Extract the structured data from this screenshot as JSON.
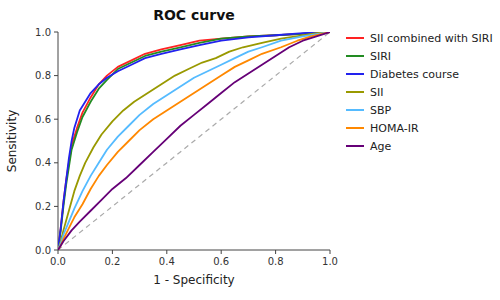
{
  "chart_data": {
    "type": "line",
    "title": "ROC curve",
    "x_label": "1 - Specificity",
    "y_label": "Sensitivity",
    "xlim": [
      0.0,
      1.0
    ],
    "ylim": [
      0.0,
      1.0
    ],
    "xticks": [
      {
        "value": 0.0,
        "label": "0.0"
      },
      0.2,
      0.4,
      0.6,
      0.8,
      {
        "value": 1.0,
        "label": "1.0"
      }
    ],
    "yticks": [
      {
        "value": 0.0,
        "label": "0.0"
      },
      0.2,
      0.4,
      0.6,
      0.8,
      {
        "value": 1.0,
        "label": "1.0"
      }
    ],
    "grid": false,
    "legend": "right",
    "series": [
      {
        "color": "#AAAAAA",
        "line_style": "dashed",
        "x": [
          0,
          1
        ],
        "values": [
          0,
          1
        ]
      },
      {
        "name": "SII combined with SIRI",
        "color": "#FF2222",
        "x": [
          0,
          0.01,
          0.02,
          0.03,
          0.04,
          0.05,
          0.07,
          0.09,
          0.12,
          0.15,
          0.18,
          0.22,
          0.27,
          0.32,
          0.38,
          0.45,
          0.52,
          0.6,
          0.7,
          0.8,
          0.88,
          0.93,
          1.0
        ],
        "values": [
          0,
          0.1,
          0.22,
          0.32,
          0.4,
          0.48,
          0.56,
          0.63,
          0.7,
          0.76,
          0.8,
          0.84,
          0.87,
          0.9,
          0.92,
          0.94,
          0.96,
          0.97,
          0.98,
          0.985,
          0.99,
          0.995,
          1.0
        ]
      },
      {
        "name": "SIRI",
        "color": "#228B22",
        "x": [
          0,
          0.01,
          0.02,
          0.03,
          0.04,
          0.05,
          0.07,
          0.09,
          0.12,
          0.15,
          0.18,
          0.22,
          0.27,
          0.32,
          0.38,
          0.45,
          0.52,
          0.6,
          0.7,
          0.8,
          0.88,
          0.93,
          1.0
        ],
        "values": [
          0,
          0.09,
          0.2,
          0.3,
          0.38,
          0.46,
          0.54,
          0.61,
          0.68,
          0.74,
          0.78,
          0.83,
          0.86,
          0.89,
          0.91,
          0.93,
          0.95,
          0.97,
          0.98,
          0.985,
          0.99,
          0.995,
          1.0
        ]
      },
      {
        "name": "Diabetes course",
        "color": "#2222EE",
        "x": [
          0,
          0.01,
          0.02,
          0.04,
          0.05,
          0.06,
          0.07,
          0.08,
          0.1,
          0.12,
          0.15,
          0.18,
          0.22,
          0.27,
          0.32,
          0.38,
          0.45,
          0.52,
          0.6,
          0.7,
          0.8,
          0.9,
          1.0
        ],
        "values": [
          0,
          0.1,
          0.22,
          0.42,
          0.5,
          0.56,
          0.6,
          0.64,
          0.68,
          0.72,
          0.76,
          0.79,
          0.82,
          0.85,
          0.88,
          0.9,
          0.92,
          0.94,
          0.96,
          0.975,
          0.985,
          0.995,
          1.0
        ]
      },
      {
        "name": "SII",
        "color": "#999900",
        "x": [
          0,
          0.01,
          0.02,
          0.04,
          0.06,
          0.08,
          0.1,
          0.13,
          0.16,
          0.2,
          0.24,
          0.28,
          0.33,
          0.38,
          0.43,
          0.48,
          0.53,
          0.58,
          0.63,
          0.68,
          0.75,
          0.82,
          0.9,
          0.95,
          1.0
        ],
        "values": [
          0,
          0.04,
          0.09,
          0.18,
          0.27,
          0.34,
          0.4,
          0.47,
          0.53,
          0.59,
          0.64,
          0.68,
          0.72,
          0.76,
          0.8,
          0.83,
          0.86,
          0.88,
          0.91,
          0.93,
          0.95,
          0.97,
          0.985,
          0.995,
          1.0
        ]
      },
      {
        "name": "SBP",
        "color": "#55BBFF",
        "x": [
          0,
          0.01,
          0.02,
          0.04,
          0.06,
          0.09,
          0.12,
          0.15,
          0.18,
          0.22,
          0.26,
          0.3,
          0.35,
          0.4,
          0.45,
          0.5,
          0.55,
          0.6,
          0.65,
          0.7,
          0.75,
          0.82,
          0.9,
          0.95,
          1.0
        ],
        "values": [
          0,
          0.03,
          0.07,
          0.13,
          0.19,
          0.27,
          0.34,
          0.4,
          0.46,
          0.52,
          0.57,
          0.62,
          0.67,
          0.71,
          0.75,
          0.79,
          0.82,
          0.85,
          0.88,
          0.91,
          0.93,
          0.96,
          0.98,
          0.99,
          1.0
        ]
      },
      {
        "name": "HOMA-IR",
        "color": "#FF8800",
        "x": [
          0,
          0.01,
          0.02,
          0.04,
          0.06,
          0.09,
          0.12,
          0.15,
          0.18,
          0.22,
          0.26,
          0.3,
          0.35,
          0.4,
          0.45,
          0.5,
          0.55,
          0.6,
          0.65,
          0.7,
          0.75,
          0.82,
          0.88,
          0.93,
          1.0
        ],
        "values": [
          0,
          0.02,
          0.05,
          0.1,
          0.15,
          0.21,
          0.28,
          0.34,
          0.39,
          0.45,
          0.5,
          0.55,
          0.6,
          0.64,
          0.68,
          0.72,
          0.76,
          0.8,
          0.84,
          0.87,
          0.9,
          0.93,
          0.96,
          0.98,
          1.0
        ]
      },
      {
        "name": "Age",
        "color": "#660077",
        "x": [
          0,
          0.02,
          0.05,
          0.08,
          0.12,
          0.16,
          0.2,
          0.25,
          0.3,
          0.35,
          0.4,
          0.45,
          0.5,
          0.55,
          0.6,
          0.65,
          0.7,
          0.75,
          0.8,
          0.85,
          0.9,
          0.95,
          1.0
        ],
        "values": [
          0,
          0.04,
          0.09,
          0.13,
          0.18,
          0.23,
          0.28,
          0.33,
          0.39,
          0.45,
          0.51,
          0.57,
          0.62,
          0.67,
          0.72,
          0.77,
          0.81,
          0.85,
          0.89,
          0.93,
          0.96,
          0.98,
          1.0
        ]
      }
    ]
  }
}
